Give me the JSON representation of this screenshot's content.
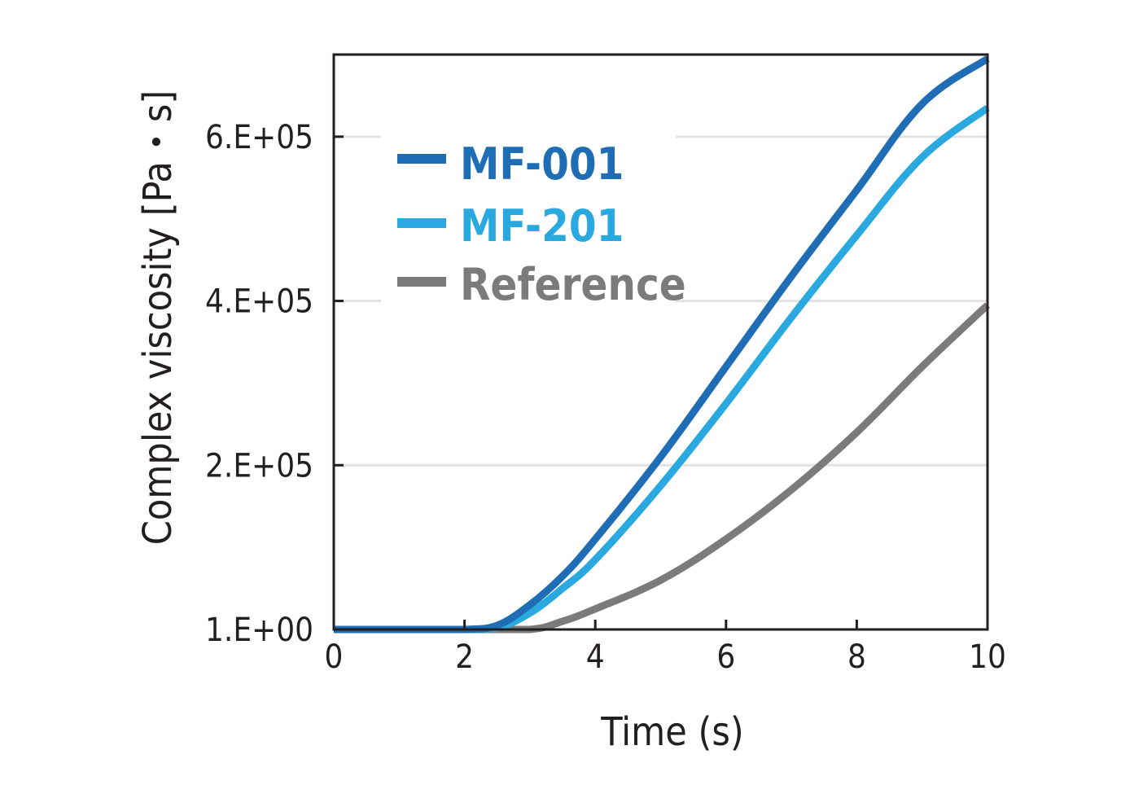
{
  "chart_data": {
    "type": "line",
    "xlabel": "Time (s)",
    "ylabel": "Complex viscosity [Pa・s]",
    "xlim": [
      0,
      10
    ],
    "ylim": [
      0,
      700000
    ],
    "x_ticks": [
      "0",
      "2",
      "4",
      "6",
      "8",
      "10"
    ],
    "x_tick_values": [
      0,
      2,
      4,
      6,
      8,
      10
    ],
    "y_ticks": [
      "1.E+00",
      "2.E+05",
      "4.E+05",
      "6.E+05"
    ],
    "y_tick_values": [
      0,
      200000,
      400000,
      600000
    ],
    "grid": "horizontal",
    "legend_position": "top-left",
    "series": [
      {
        "name": "MF-001",
        "color": "#1f6db5",
        "x": [
          0,
          1,
          2,
          2.5,
          3,
          3.5,
          4,
          5,
          6,
          7,
          8,
          9,
          10
        ],
        "y": [
          0,
          0,
          0,
          5000,
          30000,
          65000,
          110000,
          210000,
          320000,
          430000,
          535000,
          640000,
          695000
        ]
      },
      {
        "name": "MF-201",
        "color": "#2aa9e0",
        "x": [
          0,
          1,
          2,
          2.5,
          3,
          3.5,
          4,
          5,
          6,
          7,
          8,
          9,
          10
        ],
        "y": [
          0,
          0,
          0,
          2000,
          20000,
          50000,
          85000,
          175000,
          275000,
          380000,
          480000,
          575000,
          635000
        ]
      },
      {
        "name": "Reference",
        "color": "#7b7b7b",
        "x": [
          0,
          1,
          2,
          3,
          3.5,
          4,
          5,
          6,
          7,
          8,
          9,
          10
        ],
        "y": [
          0,
          0,
          0,
          0,
          10000,
          25000,
          60000,
          110000,
          170000,
          240000,
          320000,
          395000
        ]
      }
    ]
  }
}
